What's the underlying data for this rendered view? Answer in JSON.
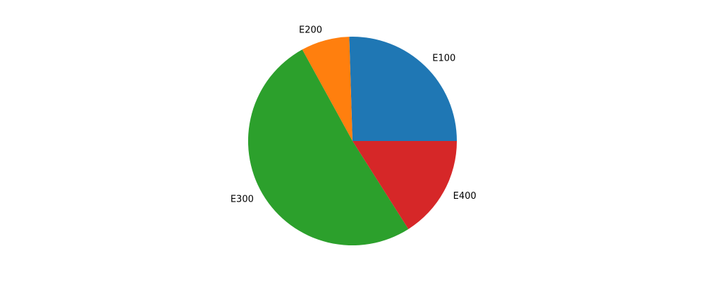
{
  "chart_data": {
    "type": "pie",
    "title": "",
    "categories": [
      "E100",
      "E200",
      "E300",
      "E400"
    ],
    "values": [
      25.5,
      7.5,
      51.0,
      16.0
    ],
    "colors": [
      "#1f77b4",
      "#ff7f0e",
      "#2ca02c",
      "#d62728"
    ],
    "start_angle_deg": 0,
    "direction": "counterclockwise",
    "legend": "none",
    "grid": false
  }
}
